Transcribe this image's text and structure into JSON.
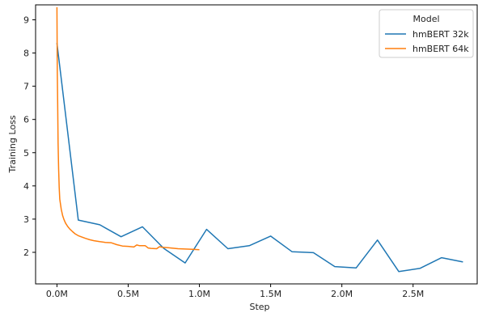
{
  "chart_data": {
    "type": "line",
    "xlabel": "Step",
    "ylabel": "Training Loss",
    "xlim": [
      -150000,
      2950000
    ],
    "ylim": [
      1.05,
      9.45
    ],
    "x_ticks": [
      0,
      500000,
      1000000,
      1500000,
      2000000,
      2500000
    ],
    "x_tick_labels": [
      "0.0M",
      "0.5M",
      "1.0M",
      "1.5M",
      "2.0M",
      "2.5M"
    ],
    "y_ticks": [
      2,
      3,
      4,
      5,
      6,
      7,
      8,
      9
    ],
    "y_tick_labels": [
      "2",
      "3",
      "4",
      "5",
      "6",
      "7",
      "8",
      "9"
    ],
    "grid": false,
    "legend": {
      "title": "Model",
      "position": "top-right"
    },
    "series": [
      {
        "name": "hmBERT 32k",
        "color": "#1f77b4",
        "x": [
          0,
          150000,
          300000,
          450000,
          600000,
          750000,
          900000,
          1050000,
          1200000,
          1350000,
          1500000,
          1650000,
          1800000,
          1950000,
          2100000,
          2250000,
          2400000,
          2550000,
          2700000,
          2850000
        ],
        "y": [
          8.3,
          2.97,
          2.83,
          2.47,
          2.77,
          2.12,
          1.68,
          2.69,
          2.11,
          2.2,
          2.49,
          2.02,
          1.99,
          1.57,
          1.53,
          2.37,
          1.42,
          1.52,
          1.84,
          1.71
        ]
      },
      {
        "name": "hmBERT 64k",
        "color": "#ff7f0e",
        "x": [
          0,
          2000,
          5000,
          8000,
          12000,
          16000,
          20000,
          30000,
          40000,
          50000,
          60000,
          75000,
          90000,
          110000,
          130000,
          150000,
          175000,
          200000,
          230000,
          260000,
          300000,
          340000,
          380000,
          420000,
          460000,
          500000,
          540000,
          560000,
          580000,
          620000,
          640000,
          660000,
          700000,
          720000,
          740000,
          780000,
          800000,
          850000,
          900000,
          950000,
          1000000
        ],
        "y": [
          9.38,
          7.5,
          6.5,
          5.3,
          4.5,
          3.95,
          3.6,
          3.3,
          3.1,
          2.98,
          2.88,
          2.78,
          2.7,
          2.62,
          2.55,
          2.5,
          2.46,
          2.42,
          2.38,
          2.35,
          2.32,
          2.3,
          2.29,
          2.23,
          2.19,
          2.18,
          2.16,
          2.22,
          2.2,
          2.2,
          2.13,
          2.12,
          2.11,
          2.17,
          2.15,
          2.14,
          2.13,
          2.11,
          2.1,
          2.09,
          2.08
        ]
      }
    ]
  }
}
